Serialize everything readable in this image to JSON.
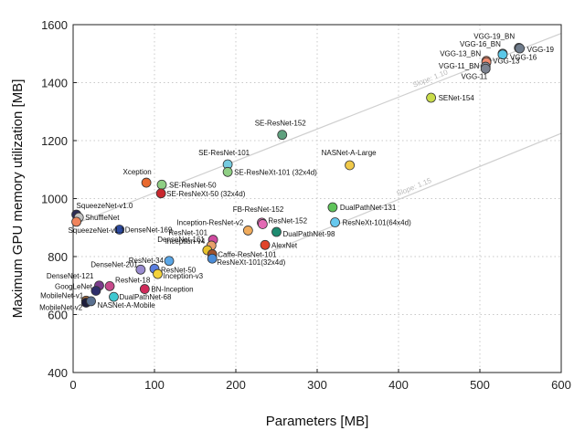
{
  "chart_data": {
    "type": "scatter",
    "title": "",
    "xlabel": "Parameters [MB]",
    "ylabel": "Maximum GPU memory utilization [MB]",
    "xlim": [
      0,
      600
    ],
    "ylim": [
      400,
      1600
    ],
    "xticks": [
      "0",
      "100",
      "200",
      "300",
      "400",
      "500",
      "600"
    ],
    "yticks": [
      "400",
      "600",
      "800",
      "1000",
      "1200",
      "1400",
      "1600"
    ],
    "grid": true,
    "trend_lines": [
      {
        "label": "Slope: 1.10",
        "x": [
          0,
          600
        ],
        "y": [
          910,
          1570
        ]
      },
      {
        "label": "Slope: 1.15",
        "x": [
          245,
          600
        ],
        "y": [
          820,
          1225
        ]
      }
    ],
    "points": [
      {
        "name": "VGG-19_BN",
        "x": 548,
        "y": 1520,
        "color": "#6c7a89",
        "label": "VGG-19_BN"
      },
      {
        "name": "VGG-19",
        "x": 549,
        "y": 1518,
        "color": "#6f7c8c",
        "label": "VGG-19"
      },
      {
        "name": "VGG-16_BN",
        "x": 528,
        "y": 1500,
        "color": "#55c6e6",
        "label": "VGG-16_BN"
      },
      {
        "name": "VGG-16",
        "x": 528,
        "y": 1497,
        "color": "#5ac8e8",
        "label": "VGG-16"
      },
      {
        "name": "VGG-13_BN",
        "x": 508,
        "y": 1475,
        "color": "#e88a6a",
        "label": "VGG-13_BN"
      },
      {
        "name": "VGG-13",
        "x": 508,
        "y": 1470,
        "color": "#f08c70",
        "label": "VGG-13"
      },
      {
        "name": "VGG-11_BN",
        "x": 507,
        "y": 1455,
        "color": "#8a8f9c",
        "label": "VGG-11_BN"
      },
      {
        "name": "VGG-11",
        "x": 507,
        "y": 1448,
        "color": "#7d8390",
        "label": "VGG-11"
      },
      {
        "name": "SENet-154",
        "x": 440,
        "y": 1348,
        "color": "#c9dc4a",
        "label": "SENet-154"
      },
      {
        "name": "SE-ResNet-152",
        "x": 257,
        "y": 1220,
        "color": "#5fa07e",
        "label": "SE-ResNet-152"
      },
      {
        "name": "NASNet-A-Large",
        "x": 340,
        "y": 1115,
        "color": "#f0c94a",
        "label": "NASNet-A-Large"
      },
      {
        "name": "SE-ResNet-101",
        "x": 190,
        "y": 1118,
        "color": "#75cbe0",
        "label": "SE-ResNet-101"
      },
      {
        "name": "SE-ResNeXt-101 (32x4d)",
        "x": 190,
        "y": 1092,
        "color": "#8fcf84",
        "label": "SE-ResNeXt-101 (32x4d)"
      },
      {
        "name": "Xception",
        "x": 90,
        "y": 1055,
        "color": "#e8692e",
        "label": "Xception"
      },
      {
        "name": "SE-ResNet-50",
        "x": 109,
        "y": 1048,
        "color": "#8fcf84",
        "label": "SE-ResNet-50"
      },
      {
        "name": "SE-ResNeXt-50 (32x4d)",
        "x": 108,
        "y": 1018,
        "color": "#c8272d",
        "label": "SE-ResNeXt-50 (32x4d)"
      },
      {
        "name": "DualPathNet-131",
        "x": 319,
        "y": 970,
        "color": "#5fc45a",
        "label": "DualPathNet-131"
      },
      {
        "name": "ResNeXt-101(64x4d)",
        "x": 322,
        "y": 918,
        "color": "#66c8ee",
        "label": "ResNeXt-101(64x4d)"
      },
      {
        "name": "SqueezeNet-v1.0",
        "x": 4,
        "y": 945,
        "color": "#2c2c55",
        "label": "SqueezeNet-v1.0"
      },
      {
        "name": "ShuffleNet",
        "x": 7,
        "y": 935,
        "color": "#c4c4c4",
        "label": "ShuffleNet"
      },
      {
        "name": "SqueezeNet-v1.1",
        "x": 4,
        "y": 920,
        "color": "#f0845c",
        "label": "SqueezeNet-v1.1"
      },
      {
        "name": "DenseNet-169",
        "x": 57,
        "y": 893,
        "color": "#2c4aa0",
        "label": "DenseNet-169"
      },
      {
        "name": "FB-ResNet-152",
        "x": 232,
        "y": 917,
        "color": "#e36bb5",
        "label": "FB-ResNet-152"
      },
      {
        "name": "ResNet-152",
        "x": 233,
        "y": 912,
        "color": "#e36bb5",
        "label": "ResNet-152"
      },
      {
        "name": "Inception-ResNet-v2",
        "x": 215,
        "y": 890,
        "color": "#f0ab5c",
        "label": "Inception-ResNet-v2"
      },
      {
        "name": "DualPathNet-98",
        "x": 250,
        "y": 885,
        "color": "#1e8b70",
        "label": "DualPathNet-98"
      },
      {
        "name": "ResNet-101",
        "x": 172,
        "y": 858,
        "color": "#cf4aa0",
        "label": "ResNet-101"
      },
      {
        "name": "AlexNet",
        "x": 236,
        "y": 840,
        "color": "#e0452b",
        "label": "AlexNet"
      },
      {
        "name": "Inception-v4",
        "x": 170,
        "y": 838,
        "color": "#e8a06a",
        "label": "Inception-v4"
      },
      {
        "name": "DenseNet-161",
        "x": 165,
        "y": 822,
        "color": "#e8c22c",
        "label": "DenseNet-161"
      },
      {
        "name": "Caffe-ResNet-101",
        "x": 171,
        "y": 808,
        "color": "#a0522d",
        "label": "Caffe-ResNet-101"
      },
      {
        "name": "ResNeXt-101(32x4d)",
        "x": 171,
        "y": 793,
        "color": "#4a8cd8",
        "label": "ResNeXt-101(32x4d)"
      },
      {
        "name": "ResNet-34",
        "x": 118,
        "y": 785,
        "color": "#5aa6e6",
        "label": "ResNet-34"
      },
      {
        "name": "ResNet-50",
        "x": 100,
        "y": 758,
        "color": "#5a7ee0",
        "label": "ResNet-50"
      },
      {
        "name": "DenseNet-201",
        "x": 83,
        "y": 755,
        "color": "#9a8cd0",
        "label": "DenseNet-201"
      },
      {
        "name": "Inception-v3",
        "x": 104,
        "y": 740,
        "color": "#f3d23c",
        "label": "Inception-v3"
      },
      {
        "name": "DenseNet-121",
        "x": 32,
        "y": 700,
        "color": "#7b3c8c",
        "label": "DenseNet-121"
      },
      {
        "name": "ResNet-18",
        "x": 45,
        "y": 698,
        "color": "#c84a8c",
        "label": "ResNet-18"
      },
      {
        "name": "GoogLeNet",
        "x": 28,
        "y": 682,
        "color": "#2e2e6a",
        "label": "GoogLeNet"
      },
      {
        "name": "BN-Inception",
        "x": 88,
        "y": 688,
        "color": "#d02a5a",
        "label": "BN-Inception"
      },
      {
        "name": "DualPathNet-68",
        "x": 50,
        "y": 661,
        "color": "#3ec8d0",
        "label": "DualPathNet-68"
      },
      {
        "name": "MobileNet-v1",
        "x": 16,
        "y": 648,
        "color": "#a56b3c",
        "label": "MobileNet-v1"
      },
      {
        "name": "MobileNet-v2",
        "x": 16,
        "y": 641,
        "color": "#1e1e3c",
        "label": "MobileNet-v2"
      },
      {
        "name": "NASNet-A-Mobile",
        "x": 22,
        "y": 646,
        "color": "#5a7090",
        "label": "NASNet-A-Mobile"
      }
    ]
  }
}
